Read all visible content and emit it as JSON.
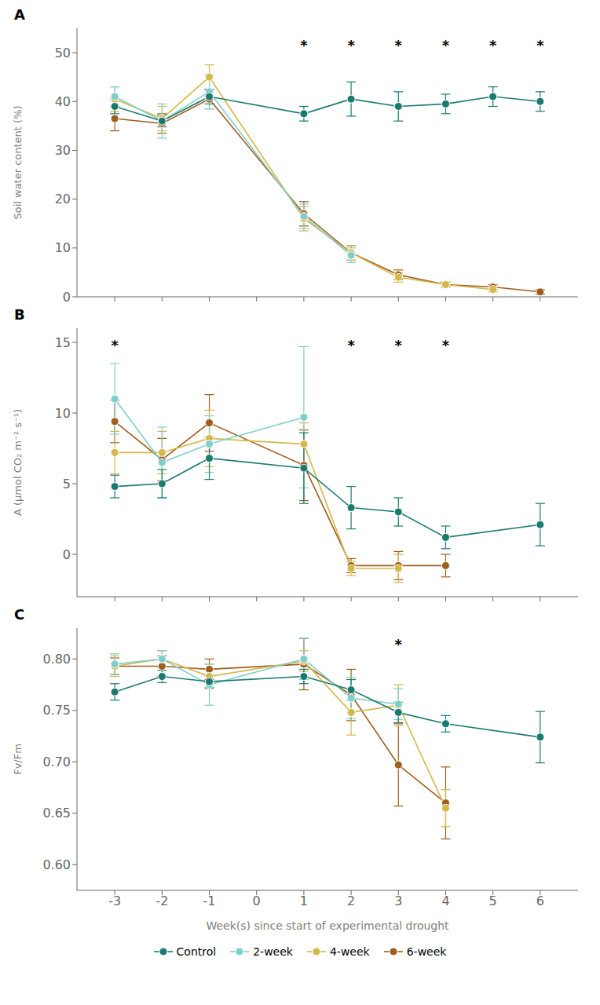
{
  "chart_data": [
    {
      "type": "line",
      "title": "A",
      "ylabel": "Soil water content (%)",
      "x": [
        -3,
        -2,
        -1,
        1,
        2,
        3,
        4,
        5,
        6
      ],
      "xlim": [
        -3.8,
        6.8
      ],
      "xticks": [
        -3,
        -2,
        -1,
        0,
        1,
        2,
        3,
        4,
        5,
        6
      ],
      "ylim": [
        0,
        55
      ],
      "yticks": [
        0,
        10,
        20,
        30,
        40,
        50
      ],
      "tick_labels": "y",
      "grid": false,
      "marker": "circle",
      "series": [
        {
          "name": "Control",
          "color": "#1a7a6e",
          "values": [
            39.0,
            36.0,
            41.0,
            37.5,
            40.5,
            39.0,
            39.5,
            41.0,
            40.0
          ],
          "errors": [
            1.5,
            1.2,
            1.5,
            1.5,
            3.5,
            3.0,
            2.0,
            2.0,
            2.0
          ]
        },
        {
          "name": "2-week",
          "color": "#7ececa",
          "values": [
            41.0,
            36.0,
            42.0,
            16.5,
            8.5,
            null,
            null,
            null,
            null
          ],
          "errors": [
            2.0,
            3.5,
            3.5,
            2.5,
            1.5,
            null,
            null,
            null,
            null
          ]
        },
        {
          "name": "4-week",
          "color": "#d4b84a",
          "values": [
            40.5,
            36.5,
            45.0,
            16.0,
            9.0,
            4.0,
            2.5,
            1.5,
            null
          ],
          "errors": [
            2.5,
            2.5,
            2.5,
            2.5,
            1.5,
            1.0,
            0.5,
            0.5,
            null
          ]
        },
        {
          "name": "6-week",
          "color": "#a05c1a",
          "values": [
            36.5,
            35.5,
            40.5,
            17.0,
            9.0,
            4.5,
            2.5,
            2.0,
            1.0
          ],
          "errors": [
            2.5,
            2.0,
            2.0,
            2.5,
            1.5,
            1.0,
            0.5,
            0.5,
            0.5
          ]
        }
      ],
      "annotations": [
        {
          "x": 1,
          "text": "*"
        },
        {
          "x": 2,
          "text": "*"
        },
        {
          "x": 3,
          "text": "*"
        },
        {
          "x": 4,
          "text": "*"
        },
        {
          "x": 5,
          "text": "*"
        },
        {
          "x": 6,
          "text": "*"
        }
      ]
    },
    {
      "type": "line",
      "title": "B",
      "ylabel": "A (μmol CO₂ m⁻² s⁻¹)",
      "x": [
        -3,
        -2,
        -1,
        1,
        2,
        3,
        4,
        6
      ],
      "xlim": [
        -3.8,
        6.8
      ],
      "xticks": [
        -3,
        -2,
        -1,
        0,
        1,
        2,
        3,
        4,
        5,
        6
      ],
      "ylim": [
        -3,
        16
      ],
      "yticks": [
        0,
        5,
        10,
        15
      ],
      "tick_labels": "y",
      "grid": false,
      "marker": "circle",
      "series": [
        {
          "name": "Control",
          "color": "#1a7a6e",
          "values": [
            4.8,
            5.0,
            6.8,
            6.1,
            3.3,
            3.0,
            1.2,
            2.1
          ],
          "errors": [
            0.8,
            1.0,
            1.5,
            2.5,
            1.5,
            1.0,
            0.8,
            1.5
          ]
        },
        {
          "name": "2-week",
          "color": "#7ececa",
          "values": [
            11.0,
            6.5,
            7.8,
            9.7,
            null,
            null,
            null,
            null
          ],
          "errors": [
            2.5,
            2.5,
            2.0,
            5.0,
            null,
            null,
            null,
            null
          ]
        },
        {
          "name": "4-week",
          "color": "#d4b84a",
          "values": [
            7.2,
            7.2,
            8.2,
            7.8,
            -1.0,
            -1.0,
            null,
            null
          ],
          "errors": [
            1.5,
            1.5,
            2.0,
            1.5,
            0.5,
            1.0,
            null,
            null
          ]
        },
        {
          "name": "6-week",
          "color": "#a05c1a",
          "values": [
            9.4,
            6.7,
            9.3,
            6.3,
            -0.8,
            -0.8,
            -0.8,
            null
          ],
          "errors": [
            1.5,
            1.5,
            2.0,
            2.5,
            0.5,
            1.0,
            0.8,
            null
          ]
        }
      ],
      "annotations": [
        {
          "x": -3,
          "text": "*"
        },
        {
          "x": 2,
          "text": "*"
        },
        {
          "x": 3,
          "text": "*"
        },
        {
          "x": 4,
          "text": "*"
        }
      ]
    },
    {
      "type": "line",
      "title": "C",
      "ylabel": "Fv/Fm",
      "xlabel": "Week(s) since start of experimental drought",
      "x": [
        -3,
        -2,
        -1,
        1,
        2,
        3,
        4,
        6
      ],
      "xlim": [
        -3.8,
        6.8
      ],
      "xticks": [
        -3,
        -2,
        -1,
        0,
        1,
        2,
        3,
        4,
        5,
        6
      ],
      "ylim": [
        0.575,
        0.83
      ],
      "yticks": [
        {
          "value": 0.6,
          "label": "0.60"
        },
        0.65,
        {
          "value": 0.7,
          "label": "0.70"
        },
        0.75,
        {
          "value": 0.8,
          "label": "0.80"
        }
      ],
      "grid": false,
      "marker": "circle",
      "legend": "bottom",
      "series": [
        {
          "name": "Control",
          "color": "#1a7a6e",
          "values": [
            0.768,
            0.783,
            0.778,
            0.783,
            0.77,
            0.748,
            0.737,
            0.724
          ],
          "errors": [
            0.008,
            0.006,
            0.006,
            0.007,
            0.01,
            0.01,
            0.008,
            0.025
          ]
        },
        {
          "name": "2-week",
          "color": "#7ececa",
          "values": [
            0.795,
            0.8,
            0.775,
            0.8,
            0.762,
            0.756,
            null,
            null
          ],
          "errors": [
            0.01,
            0.008,
            0.02,
            0.02,
            0.02,
            0.015,
            null,
            null
          ]
        },
        {
          "name": "4-week",
          "color": "#d4b84a",
          "values": [
            0.793,
            0.8,
            0.783,
            0.798,
            0.748,
            0.755,
            0.655,
            null
          ],
          "errors": [
            0.01,
            0.008,
            0.012,
            0.01,
            0.022,
            0.02,
            0.018,
            null
          ]
        },
        {
          "name": "6-week",
          "color": "#a05c1a",
          "values": [
            0.793,
            0.793,
            0.79,
            0.795,
            0.765,
            0.697,
            0.66,
            null
          ],
          "errors": [
            0.008,
            0.01,
            0.01,
            0.025,
            0.025,
            0.04,
            0.035,
            null
          ]
        }
      ],
      "annotations": [
        {
          "x": 3,
          "text": "*"
        }
      ]
    }
  ]
}
